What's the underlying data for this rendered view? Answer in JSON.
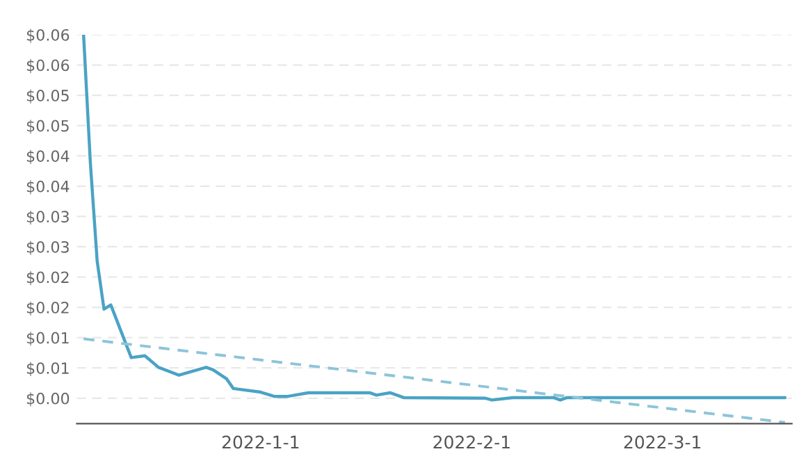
{
  "chart_data": {
    "type": "line",
    "grid": "y",
    "marker": "none",
    "xlim": [
      "2021-12-05",
      "2022-03-20"
    ],
    "ylim": [
      -0.0042,
      0.06
    ],
    "xticks": [
      {
        "value": "2022-01-01",
        "label": "2022-1-1"
      },
      {
        "value": "2022-02-01",
        "label": "2022-2-1"
      },
      {
        "value": "2022-03-01",
        "label": "2022-3-1"
      }
    ],
    "yticks": [
      {
        "value": 0,
        "label": "$0.00"
      },
      {
        "value": 0.005,
        "label": "$0.01"
      },
      {
        "value": 0.01,
        "label": "$0.01"
      },
      {
        "value": 0.015,
        "label": "$0.02"
      },
      {
        "value": 0.02,
        "label": "$0.02"
      },
      {
        "value": 0.025,
        "label": "$0.03"
      },
      {
        "value": 0.03,
        "label": "$0.03"
      },
      {
        "value": 0.035,
        "label": "$0.04"
      },
      {
        "value": 0.04,
        "label": "$0.04"
      },
      {
        "value": 0.045,
        "label": "$0.05"
      },
      {
        "value": 0.05,
        "label": "$0.05"
      },
      {
        "value": 0.055,
        "label": "$0.06"
      },
      {
        "value": 0.06,
        "label": "$0.06"
      }
    ],
    "series": [
      {
        "color": "#4aa3c4",
        "line_style": "solid",
        "x": [
          "2021-12-06",
          "2021-12-07",
          "2021-12-08",
          "2021-12-09",
          "2021-12-10",
          "2021-12-11",
          "2021-12-13",
          "2021-12-15",
          "2021-12-17",
          "2021-12-20",
          "2021-12-24",
          "2021-12-25",
          "2021-12-27",
          "2021-12-28",
          "2022-01-01",
          "2022-01-03",
          "2022-01-05",
          "2022-01-08",
          "2022-01-17",
          "2022-01-18",
          "2022-01-20",
          "2022-01-22",
          "2022-02-03",
          "2022-02-04",
          "2022-02-07",
          "2022-02-13",
          "2022-02-14",
          "2022-02-15",
          "2022-03-19"
        ],
        "values": [
          0.06,
          0.0388,
          0.0226,
          0.0147,
          0.0154,
          0.0125,
          0.0067,
          0.007,
          0.0051,
          0.0038,
          0.0051,
          0.0047,
          0.0032,
          0.0016,
          0.001,
          0.0003,
          0.0003,
          0.0009,
          0.0009,
          0.0005,
          0.0009,
          0.0001,
          0.0,
          -0.0003,
          0.0001,
          0.0001,
          -0.0003,
          0.0001,
          0.0001
        ]
      },
      {
        "color": "#8cc4da",
        "line_style": "dashed",
        "x": [
          "2021-12-06",
          "2022-03-19"
        ],
        "values": [
          0.0098,
          -0.004
        ]
      }
    ]
  }
}
